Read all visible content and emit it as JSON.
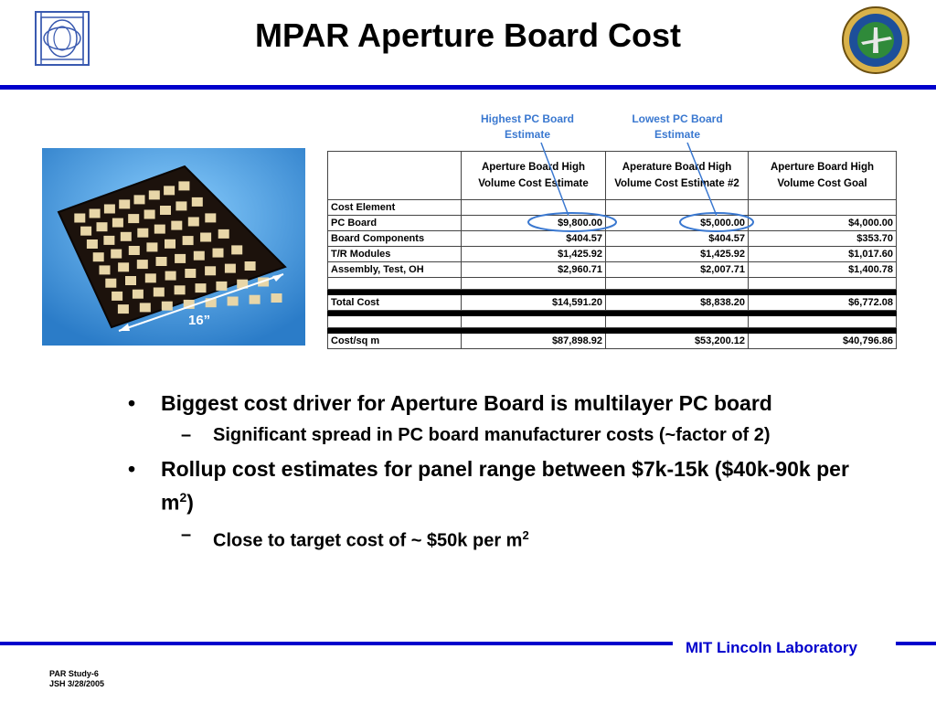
{
  "title": "MPAR Aperture Board Cost",
  "photo": {
    "dimension_label": "16”"
  },
  "callouts": {
    "high": [
      "Highest PC Board",
      "Estimate"
    ],
    "low": [
      "Lowest PC Board",
      "Estimate"
    ]
  },
  "table": {
    "headers": [
      "",
      "Aperture Board High Volume Cost Estimate",
      "Aperature Board High Volume Cost Estimate #2",
      "Aperture Board High Volume Cost Goal"
    ],
    "cost_element_label": "Cost Element",
    "rows": [
      {
        "label": "PC Board",
        "values": [
          "$9,800.00",
          "$5,000.00",
          "$4,000.00"
        ]
      },
      {
        "label": "Board Components",
        "values": [
          "$404.57",
          "$404.57",
          "$353.70"
        ]
      },
      {
        "label": "T/R Modules",
        "values": [
          "$1,425.92",
          "$1,425.92",
          "$1,017.60"
        ]
      },
      {
        "label": "Assembly, Test, OH",
        "values": [
          "$2,960.71",
          "$2,007.71",
          "$1,400.78"
        ]
      }
    ],
    "total": {
      "label": "Total Cost",
      "values": [
        "$14,591.20",
        "$8,838.20",
        "$6,772.08"
      ]
    },
    "per_sqm": {
      "label": "Cost/sq m",
      "values": [
        "$87,898.92",
        "$53,200.12",
        "$40,796.86"
      ]
    }
  },
  "bullets": [
    {
      "text": "Biggest cost driver for Aperture Board is multilayer PC board",
      "sub": [
        "Significant spread in PC board manufacturer costs (~factor of 2)"
      ]
    },
    {
      "text": "Rollup cost estimates for panel range between $7k-15k ($40k-90k per m",
      "sup": "2",
      "text_after": ")",
      "sub_text": "Close to target cost of ~ $50k per m",
      "sub_sup": "2"
    }
  ],
  "footer": {
    "lab": "MIT Lincoln Laboratory",
    "id_line1": "PAR Study-6",
    "id_line2": "JSH 3/28/2005"
  },
  "colors": {
    "rule": "#0000cc",
    "callout": "#3a78d0",
    "photo_bg": "#4aa0e0"
  },
  "icons": {
    "left_logo": "lincoln-lab-logo",
    "right_logo": "faa-seal"
  }
}
